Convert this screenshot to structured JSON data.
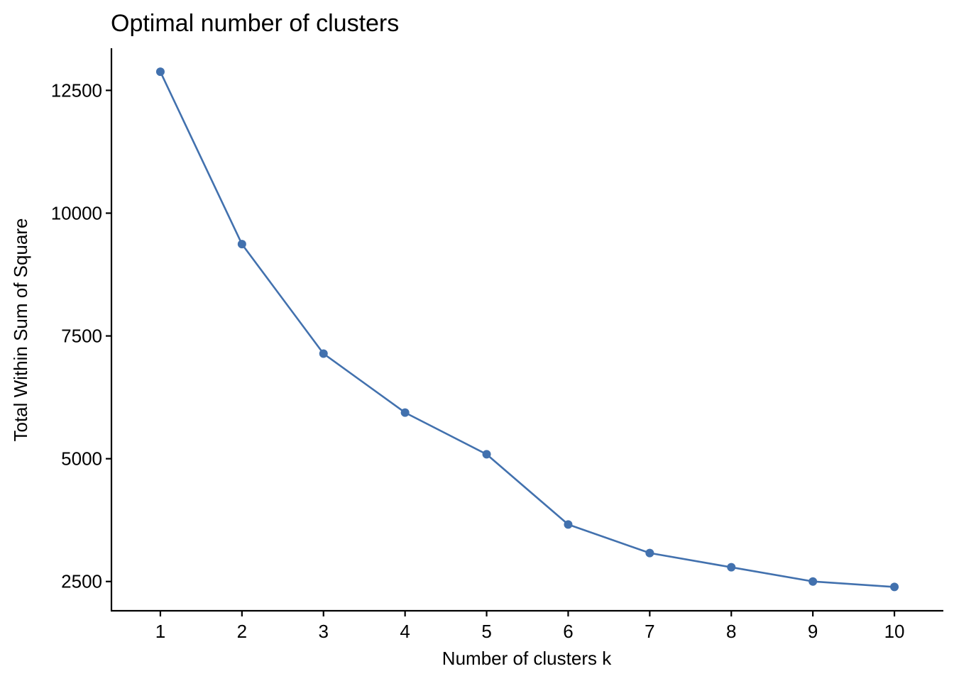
{
  "chart_data": {
    "type": "line",
    "title": "Optimal number of clusters",
    "xlabel": "Number of clusters k",
    "ylabel": "Total Within Sum of Square",
    "x": [
      1,
      2,
      3,
      4,
      5,
      6,
      7,
      8,
      9,
      10
    ],
    "x_tick_labels": [
      "1",
      "2",
      "3",
      "4",
      "5",
      "6",
      "7",
      "8",
      "9",
      "10"
    ],
    "y_ticks": [
      2500,
      5000,
      7500,
      10000,
      12500
    ],
    "y_tick_labels": [
      "2500",
      "5000",
      "7500",
      "10000",
      "12500"
    ],
    "xlim": [
      0.4,
      10.6
    ],
    "ylim": [
      1904,
      13358
    ],
    "series": [
      {
        "values": [
          12880,
          9370,
          7140,
          5940,
          5090,
          3660,
          3080,
          2790,
          2500,
          2390
        ],
        "color": "#4271ae"
      }
    ],
    "grid": false,
    "markers": true
  }
}
